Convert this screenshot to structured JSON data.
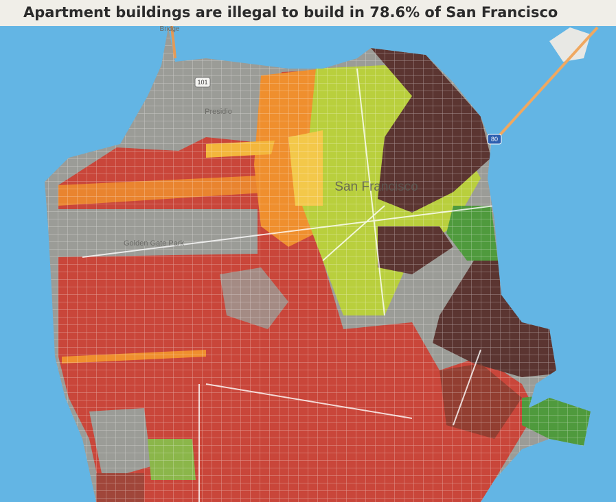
{
  "header": {
    "title": "Apartment buildings are illegal to build in 78.6% of San Francisco"
  },
  "map": {
    "labels": [
      "Bridge",
      "Presidio",
      "San Francisco",
      "Golden Gate Park"
    ],
    "shields": [
      "101",
      "80"
    ]
  }
}
